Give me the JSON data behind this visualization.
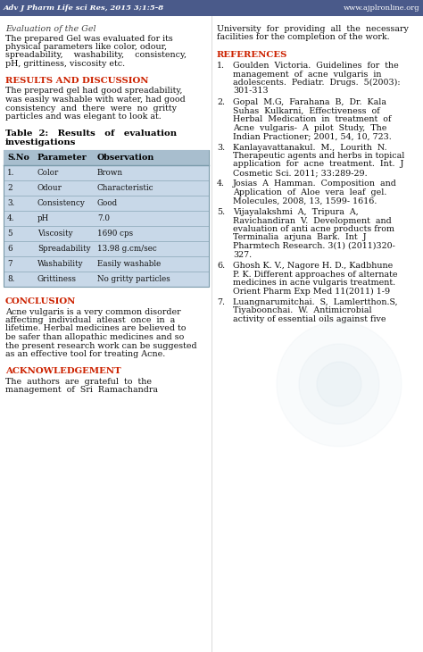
{
  "page_bg": "#ffffff",
  "header_text": "Adv J Pharm Life sci Res, 2015 3;1:5-8",
  "header_url": "www.ajplronline.org",
  "header_bg": "#4a5a8a",
  "italic_heading1": "Evaluation of the Gel",
  "para1_lines": [
    "The prepared Gel was evaluated for its",
    "physical parameters like color, odour,",
    "spreadability,    washability,    consistency,",
    "pH, grittiness, viscosity etc."
  ],
  "red_heading2": "RESULTS AND DISCUSSION",
  "para2_lines": [
    "The prepared gel had good spreadability,",
    "was easily washable with water, had good",
    "consistency  and  there  were  no  gritty",
    "particles and was elegant to look at."
  ],
  "table_title_line1": "Table  2:   Results   of   evaluation",
  "table_title_line2": "investigations",
  "table_headers": [
    "S.No",
    "Parameter",
    "Observation"
  ],
  "table_rows": [
    [
      "1.",
      "Color",
      "Brown"
    ],
    [
      "2",
      "Odour",
      "Characteristic"
    ],
    [
      "3.",
      "Consistency",
      "Good"
    ],
    [
      "4.",
      "pH",
      "7.0"
    ],
    [
      "5",
      "Viscosity",
      "1690 cps"
    ],
    [
      "6",
      "Spreadability",
      "13.98 g.cm/sec"
    ],
    [
      "7",
      "Washability",
      "Easily washable"
    ],
    [
      "8.",
      "Grittiness",
      "No gritty particles"
    ]
  ],
  "table_bg": "#c8d8e8",
  "table_header_bg": "#a8bece",
  "table_border": "#7a9aaa",
  "red_heading3": "CONCLUSION",
  "para3_lines": [
    "Acne vulgaris is a very common disorder",
    "affecting  individual  atleast  once  in  a",
    "lifetime. Herbal medicines are believed to",
    "be safer than allopathic medicines and so",
    "the present research work can be suggested",
    "as an effective tool for treating Acne."
  ],
  "red_heading4": "ACKNOWLEDGEMENT",
  "para4_lines": [
    "The  authors  are  grateful  to  the",
    "management  of  Sri  Ramachandra"
  ],
  "right_para1_lines": [
    "University  for  providing  all  the  necessary",
    "facilities for the completion of the work."
  ],
  "red_ref": "REFERENCES",
  "references": [
    [
      "1.",
      "Goulden  Victoria.  Guidelines  for  the",
      "management  of  acne  vulgaris  in",
      "adolescents.  Pediatr.  Drugs.  5(2003):",
      "301-313"
    ],
    [
      "2.",
      "Gopal  M.G,  Farahana  B,  Dr.  Kala",
      "Suhas  Kulkarni,  Effectiveness  of",
      "Herbal  Medication  in  treatment  of",
      "Acne  vulgaris-  A  pilot  Study,  The",
      "Indian Practioner; 2001, 54, 10, 723."
    ],
    [
      "3.",
      "Kanlayavattanakul.  M.,  Lourith  N.",
      "Therapeutic agents and herbs in topical",
      "application  for  acne  treatment.  Int.  J",
      "Cosmetic Sci. 2011; 33:289-29."
    ],
    [
      "4.",
      "Josias  A  Hamman.  Composition  and",
      "Application  of  Aloe  vera  leaf  gel.",
      "Molecules, 2008, 13, 1599- 1616."
    ],
    [
      "5.",
      "Vijayalakshmi  A,  Tripura  A,",
      "Ravichandiran  V.  Development  and",
      "evaluation of anti acne products from",
      "Terminalia  arjuna  Bark.  Int  J",
      "Pharmtech Research. 3(1) (2011)320-",
      "327."
    ],
    [
      "6.",
      "Ghosh K. V., Nagore H. D., Kadbhune",
      "P. K. Different approaches of alternate",
      "medicines in acne vulgaris treatment.",
      "Orient Pharm Exp Med 11(2011) 1-9"
    ],
    [
      "7.",
      "Luangnarumitchai.  S,  Lamlertthon.S,",
      "Tiyaboonchai.  W.  Antimicrobial",
      "activity of essential oils against five"
    ]
  ],
  "watermark_color": "#b8ccd8"
}
